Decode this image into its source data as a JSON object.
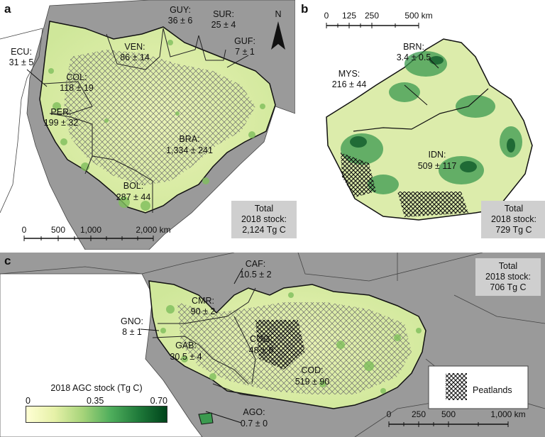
{
  "panels": {
    "a": {
      "label": "a",
      "north": "N",
      "countries": [
        {
          "code": "GUY:",
          "value": "36 ± 6"
        },
        {
          "code": "SUR:",
          "value": "25 ± 4"
        },
        {
          "code": "GUF:",
          "value": "7 ± 1"
        },
        {
          "code": "ECU:",
          "value": "31 ± 5"
        },
        {
          "code": "VEN:",
          "value": "86 ± 14"
        },
        {
          "code": "COL:",
          "value": "118 ± 19"
        },
        {
          "code": "PER:",
          "value": "199 ± 32"
        },
        {
          "code": "BRA:",
          "value": "1,334 ± 241"
        },
        {
          "code": "BOL:",
          "value": "287 ± 44"
        }
      ],
      "total": [
        "Total",
        "2018 stock:",
        "2,124 Tg C"
      ],
      "scale": [
        "0",
        "500",
        "1,000",
        "2,000 km"
      ]
    },
    "b": {
      "label": "b",
      "countries": [
        {
          "code": "BRN:",
          "value": "3.4 ± 0.5"
        },
        {
          "code": "MYS:",
          "value": "216 ± 44"
        },
        {
          "code": "IDN:",
          "value": "509 ± 117"
        }
      ],
      "total": [
        "Total",
        "2018 stock:",
        "729 Tg C"
      ],
      "scale": [
        "0",
        "125",
        "250",
        "500 km"
      ]
    },
    "c": {
      "label": "c",
      "countries": [
        {
          "code": "CAF:",
          "value": "10.5 ± 2"
        },
        {
          "code": "CMR:",
          "value": "90 ± 2"
        },
        {
          "code": "GNO:",
          "value": "8 ± 1"
        },
        {
          "code": "GAB:",
          "value": "30.5 ± 4"
        },
        {
          "code": "COG:",
          "value": "48 ± 8"
        },
        {
          "code": "COD:",
          "value": "519 ± 90"
        },
        {
          "code": "AGO:",
          "value": "0.7 ± 0"
        }
      ],
      "total": [
        "Total",
        "2018 stock:",
        "706 Tg C"
      ],
      "scale": [
        "0",
        "250",
        "500",
        "1,000 km"
      ],
      "peatlands_label": "Peatlands"
    }
  },
  "legend": {
    "title": "2018 AGC stock (Tg C)",
    "ticks": [
      "0",
      "0.35",
      "0.70"
    ],
    "colors": [
      "#ffffd4",
      "#a7d47a",
      "#00441b"
    ]
  },
  "colors": {
    "land_bg": "#9a9a9a",
    "ocean": "#ffffff",
    "forest_light": "#f2f4c4",
    "forest_mid": "#a7d47a",
    "forest_dark": "#1f7a3a",
    "total_box": "#cfcfcf"
  }
}
